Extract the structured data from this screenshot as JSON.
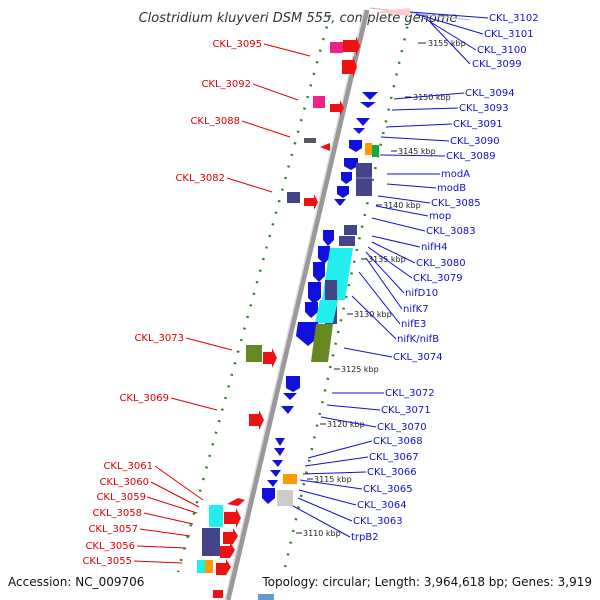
{
  "title": "Clostridium kluyveri DSM 555, complete genome",
  "footer": {
    "accession": "Accession: NC_009706",
    "topology": "Topology: circular; Length: 3,964,618 bp; Genes: 3,919"
  },
  "ticks": [
    "3155 kbp",
    "3150 kbp",
    "3145 kbp",
    "3140 kbp",
    "3135 kbp",
    "3130 kbp",
    "3125 kbp",
    "3120 kbp",
    "3115 kbp",
    "3110 kbp"
  ],
  "left_labels": [
    "CKL_3095",
    "CKL_3092",
    "CKL_3088",
    "CKL_3082",
    "CKL_3073",
    "CKL_3069",
    "CKL_3061",
    "CKL_3060",
    "CKL_3059",
    "CKL_3058",
    "CKL_3057",
    "CKL_3056",
    "CKL_3055"
  ],
  "right_labels": [
    "CKL_3102",
    "CKL_3101",
    "CKL_3100",
    "CKL_3099",
    "CKL_3094",
    "CKL_3093",
    "CKL_3091",
    "CKL_3090",
    "CKL_3089",
    "modA",
    "modB",
    "CKL_3085",
    "mop",
    "CKL_3083",
    "nifH4",
    "CKL_3080",
    "CKL_3079",
    "nifD10",
    "nifK7",
    "nifE3",
    "nifK/nifB",
    "CKL_3074",
    "CKL_3072",
    "CKL_3071",
    "CKL_3070",
    "CKL_3068",
    "CKL_3067",
    "CKL_3066",
    "CKL_3065",
    "CKL_3064",
    "CKL_3063",
    "trpB2"
  ],
  "colors": {
    "backbone": "#999999",
    "forward_gene": "#ee1111",
    "reverse_gene": "#1111dd",
    "left_label": "#e00000",
    "right_label": "#1010cc",
    "dots": "#228822",
    "pink": "#ee2288",
    "olive": "#668822",
    "navy": "#444488",
    "cyan": "#22eeee",
    "orange": "#ff9900"
  }
}
